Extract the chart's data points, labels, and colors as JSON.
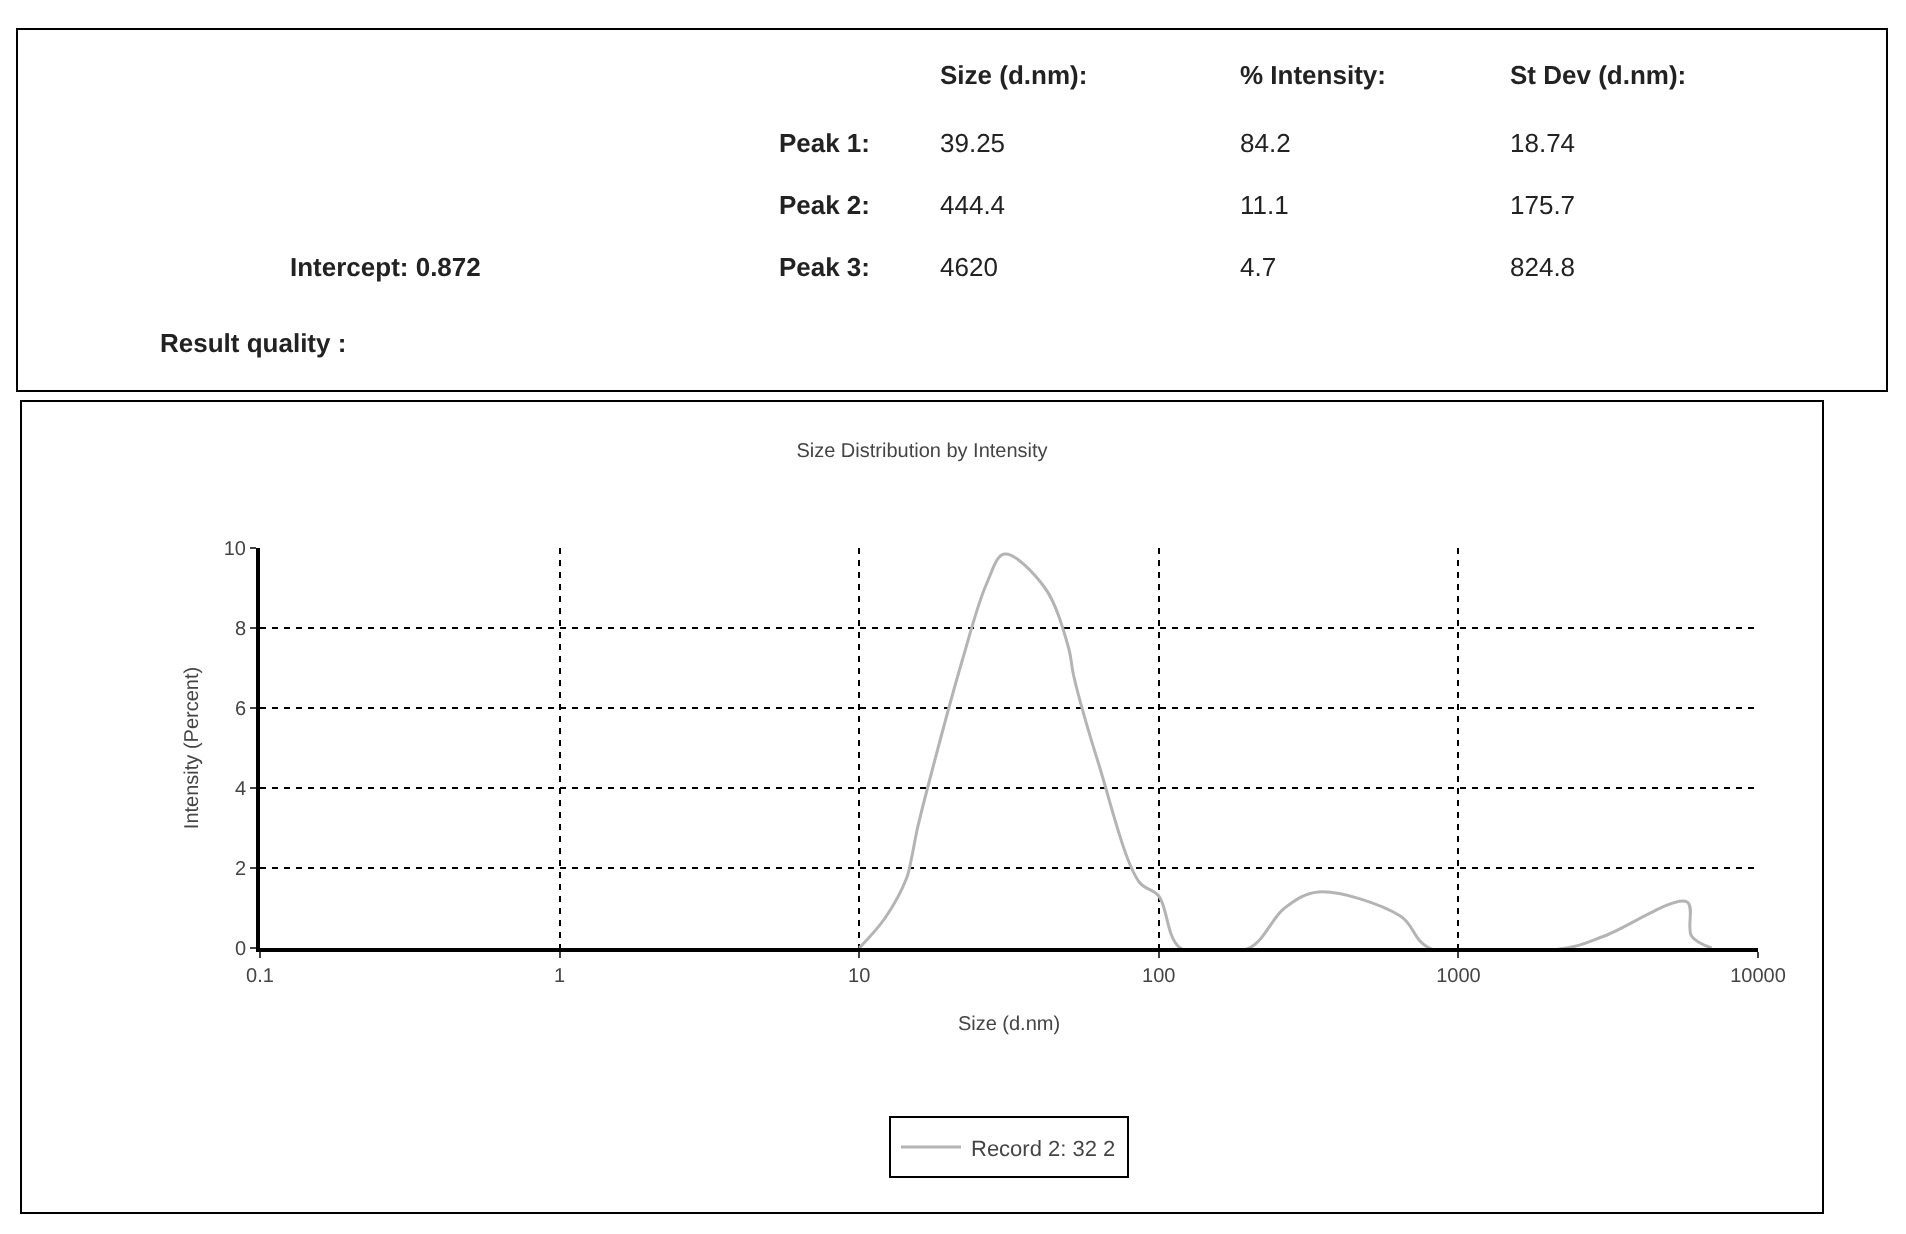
{
  "chart_data": {
    "type": "line",
    "title": "Size Distribution by Intensity",
    "xlabel": "Size (d.nm)",
    "ylabel": "Intensity (Percent)",
    "annotations": [
      "Size (d.nm):",
      "% Intensity:",
      "St Dev (d.nm):",
      "Peak 1:",
      "39.25",
      "84.2",
      "18.74",
      "Peak 2:",
      "444.4",
      "11.1",
      "175.7",
      "Peak 3:",
      "4620",
      "4.7",
      "824.8",
      "Intercept: 0.872",
      "Result quality :"
    ],
    "series": [
      {
        "name": "Record 2: 32 2",
        "color": "#b4b4b4",
        "x": [
          10,
          12.2,
          14.4,
          15,
          15.6,
          17.6,
          22,
          26.6,
          30.5,
          41.7,
          50,
          52,
          63,
          86,
          100,
          118,
          200,
          263,
          341,
          640,
          800,
          2300,
          3070,
          5800,
          6000,
          7000
        ],
        "values": [
          0,
          0.75,
          1.75,
          2.3,
          2.95,
          4.5,
          7.15,
          9.1,
          9.85,
          9.0,
          7.5,
          6.8,
          4.6,
          1.65,
          1.3,
          0,
          0,
          1.0,
          1.4,
          0.8,
          0,
          0,
          0.3,
          1.15,
          0.3,
          0
        ]
      }
    ],
    "xlim": [
      0.1,
      10000
    ],
    "xticks": [
      0.1,
      1,
      10,
      100,
      1000,
      10000
    ],
    "ylim": [
      0,
      10
    ],
    "yticks": [
      0,
      2,
      4,
      6,
      8,
      10
    ],
    "log": "x",
    "grid": true,
    "legend": "bottom",
    "marker": "none",
    "line_style": "solid"
  }
}
